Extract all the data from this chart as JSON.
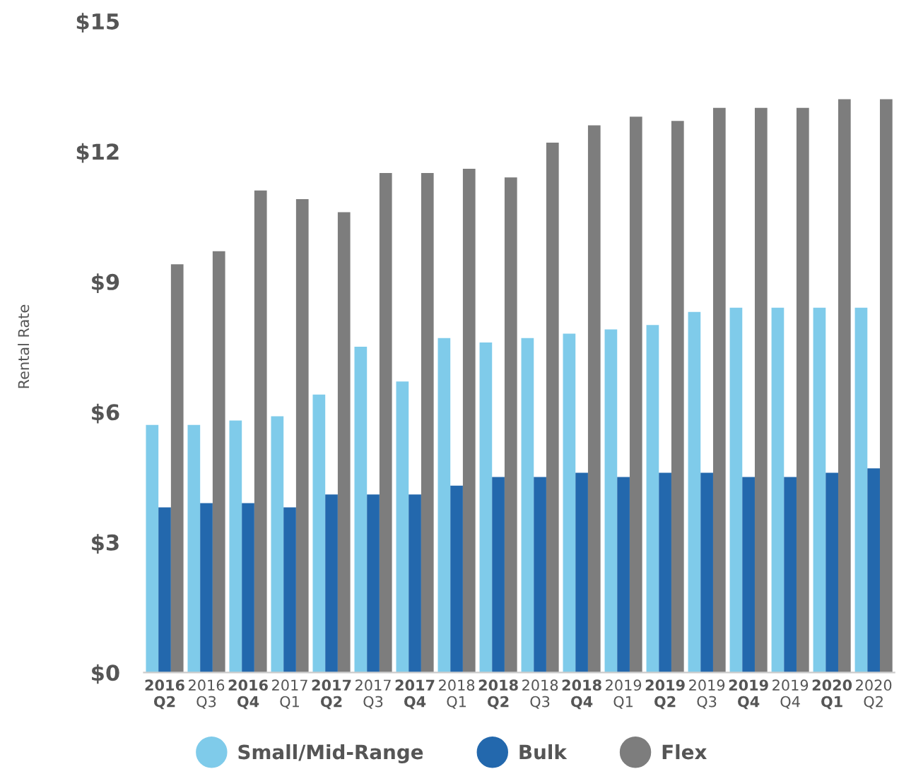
{
  "chart_data": {
    "type": "bar",
    "ylabel": "Rental Rate",
    "categories": [
      "2016\nQ2",
      "2016\nQ3",
      "2016\nQ4",
      "2017\nQ1",
      "2017\nQ2",
      "2017\nQ3",
      "2017\nQ4",
      "2018\nQ1",
      "2018\nQ2",
      "2018\nQ3",
      "2018\nQ4",
      "2019\nQ1",
      "2019\nQ2",
      "2019\nQ3",
      "2019\nQ4",
      "2019\nQ4",
      "2020\nQ1",
      "2020\nQ2"
    ],
    "series": [
      {
        "name": "Small/Mid-Range",
        "color": "#7fcbea",
        "values": [
          5.7,
          5.7,
          5.8,
          5.9,
          6.4,
          7.5,
          6.7,
          7.7,
          7.6,
          7.7,
          7.8,
          7.9,
          8.0,
          8.3,
          8.4,
          8.4,
          8.4,
          8.4
        ]
      },
      {
        "name": "Bulk",
        "color": "#2368ad",
        "values": [
          3.8,
          3.9,
          3.9,
          3.8,
          4.1,
          4.1,
          4.1,
          4.3,
          4.5,
          4.5,
          4.6,
          4.5,
          4.6,
          4.6,
          4.5,
          4.5,
          4.6,
          4.7
        ]
      },
      {
        "name": "Flex",
        "color": "#7d7d7d",
        "values": [
          9.4,
          9.7,
          11.1,
          10.9,
          10.6,
          11.5,
          11.5,
          11.6,
          11.4,
          12.2,
          12.6,
          12.8,
          12.7,
          13.0,
          13.0,
          13.0,
          13.2,
          13.2
        ]
      }
    ],
    "ylim": [
      0,
      15
    ],
    "yticks": [
      {
        "value": 0,
        "label": "$0"
      },
      {
        "value": 3,
        "label": "$3"
      },
      {
        "value": 6,
        "label": "$6"
      },
      {
        "value": 9,
        "label": "$9"
      },
      {
        "value": 12,
        "label": "$12"
      },
      {
        "value": 15,
        "label": "$15"
      }
    ],
    "grid": false,
    "legend": "bottom",
    "marker": "circle"
  }
}
